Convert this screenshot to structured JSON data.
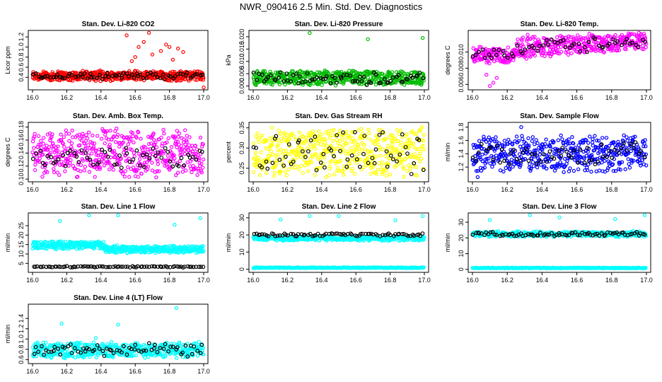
{
  "title": "NWR_090416  2.5 Min. Std. Dev. Diagnostics",
  "chart_data": [
    {
      "type": "scatter",
      "title": "Stan. Dev. Li-820 CO2",
      "ylabel": "Licor ppm",
      "xlim": [
        16.0,
        17.0
      ],
      "ylim": [
        0.18,
        1.3
      ],
      "xticks": [
        "16.0",
        "16.2",
        "16.4",
        "16.6",
        "16.8",
        "17.0"
      ],
      "yticks": [
        "0.4",
        "0.6",
        "0.8",
        "1.0",
        "1.2"
      ],
      "series": [
        {
          "color": "#ff0000",
          "band": [
            0.32,
            0.54
          ],
          "n": 500,
          "outliers": [
            [
              16.55,
              1.23
            ],
            [
              16.62,
              1.0
            ],
            [
              16.65,
              1.1
            ],
            [
              16.68,
              1.28
            ],
            [
              16.75,
              0.92
            ],
            [
              16.78,
              1.05
            ],
            [
              16.8,
              1.0
            ],
            [
              16.85,
              0.97
            ],
            [
              16.88,
              0.9
            ],
            [
              16.58,
              0.72
            ],
            [
              16.6,
              0.8
            ],
            [
              16.7,
              0.85
            ],
            [
              16.82,
              0.75
            ],
            [
              17.0,
              0.2
            ]
          ]
        },
        {
          "color": "#000000",
          "band": [
            0.36,
            0.5
          ],
          "n": 70,
          "outliers": []
        }
      ]
    },
    {
      "type": "scatter",
      "title": "Stan. Dev. Li-820 Pressure",
      "ylabel": "kPa",
      "xlim": [
        16.0,
        17.0
      ],
      "ylim": [
        -0.001,
        0.022
      ],
      "xticks": [
        "16.0",
        "16.2",
        "16.4",
        "16.6",
        "16.8",
        "17.0"
      ],
      "yticks": [
        "0.000",
        "0.005",
        "0.010",
        "0.015",
        "0.020"
      ],
      "series": [
        {
          "color": "#00bb00",
          "band": [
            0.0,
            0.0065
          ],
          "n": 500,
          "outliers": [
            [
              16.33,
              0.0215
            ],
            [
              16.67,
              0.019
            ],
            [
              16.99,
              0.0195
            ]
          ]
        },
        {
          "color": "#000000",
          "band": [
            0.0,
            0.006
          ],
          "n": 70,
          "outliers": []
        }
      ]
    },
    {
      "type": "scatter",
      "title": "Stan. Dev. Li-820 Temp.",
      "ylabel": "degrees C",
      "xlim": [
        16.0,
        17.0
      ],
      "ylim": [
        0.0055,
        0.0125
      ],
      "xticks": [
        "16.0",
        "16.2",
        "16.4",
        "16.6",
        "16.8",
        "17.0"
      ],
      "yticks": [
        "0.006",
        "0.008",
        "0.010"
      ],
      "series": [
        {
          "color": "#ff00ff",
          "band": [
            0.0085,
            0.0125
          ],
          "n": 500,
          "trend": true,
          "outliers": [
            [
              16.1,
              0.0058
            ],
            [
              16.12,
              0.0062
            ],
            [
              16.14,
              0.0068
            ],
            [
              16.08,
              0.0072
            ]
          ]
        },
        {
          "color": "#000000",
          "band": [
            0.009,
            0.0122
          ],
          "n": 60,
          "trend": true,
          "outliers": []
        }
      ]
    },
    {
      "type": "scatter",
      "title": "Stan. Dev. Amb. Box Temp.",
      "ylabel": "degrees C",
      "xlim": [
        16.0,
        17.0
      ],
      "ylim": [
        0.098,
        0.185
      ],
      "xticks": [
        "16.0",
        "16.2",
        "16.4",
        "16.6",
        "16.8",
        "17.0"
      ],
      "yticks": [
        "0.10",
        "0.12",
        "0.14",
        "0.16",
        "0.18"
      ],
      "series": [
        {
          "color": "#ff00ff",
          "band": [
            0.1,
            0.18
          ],
          "n": 500,
          "outliers": []
        },
        {
          "color": "#000000",
          "band": [
            0.115,
            0.15
          ],
          "n": 60,
          "outliers": []
        }
      ]
    },
    {
      "type": "scatter",
      "title": "Stan. Dev. Gas Stream RH",
      "ylabel": "percent",
      "xlim": [
        16.0,
        17.0
      ],
      "ylim": [
        0.22,
        0.36
      ],
      "xticks": [
        "16.0",
        "16.2",
        "16.4",
        "16.6",
        "16.8",
        "17.0"
      ],
      "yticks": [
        "0.25",
        "0.30",
        "0.35"
      ],
      "series": [
        {
          "color": "#ffff00",
          "band": [
            0.225,
            0.355
          ],
          "n": 500,
          "outliers": []
        },
        {
          "color": "#000000",
          "band": [
            0.235,
            0.35
          ],
          "n": 60,
          "outliers": []
        }
      ]
    },
    {
      "type": "scatter",
      "title": "Stan. Dev. Sample Flow",
      "ylabel": "ml/min",
      "xlim": [
        16.0,
        17.0
      ],
      "ylim": [
        1.0,
        1.85
      ],
      "xticks": [
        "16.0",
        "16.2",
        "16.4",
        "16.6",
        "16.8",
        "17.0"
      ],
      "yticks": [
        "1.2",
        "1.4",
        "1.6",
        "1.8"
      ],
      "series": [
        {
          "color": "#0000ff",
          "band": [
            1.1,
            1.7
          ],
          "n": 500,
          "outliers": [
            [
              16.28,
              1.8
            ],
            [
              16.03,
              1.05
            ]
          ]
        },
        {
          "color": "#000000",
          "band": [
            1.2,
            1.6
          ],
          "n": 60,
          "outliers": []
        }
      ]
    },
    {
      "type": "scatter",
      "title": "Stan. Dev. Line 1 Flow",
      "ylabel": "ml/min",
      "xlim": [
        16.0,
        17.0
      ],
      "ylim": [
        1.0,
        31.0
      ],
      "xticks": [
        "16.0",
        "16.2",
        "16.4",
        "16.6",
        "16.8",
        "17.0"
      ],
      "yticks": [
        "5",
        "10",
        "15",
        "20",
        "25"
      ],
      "series": [
        {
          "color": "#00ffff",
          "band": [
            12.5,
            17.0
          ],
          "n": 500,
          "step": true,
          "outliers": [
            [
              16.16,
              27.5
            ],
            [
              16.33,
              30.5
            ],
            [
              16.5,
              30.5
            ],
            [
              16.83,
              25.5
            ],
            [
              16.98,
              29.0
            ]
          ]
        },
        {
          "color": "#000000",
          "band": [
            2.8,
            3.6
          ],
          "n": 80,
          "outliers": []
        }
      ]
    },
    {
      "type": "scatter",
      "title": "Stan. Dev. Line 2 Flow",
      "ylabel": "ml/min",
      "xlim": [
        16.0,
        17.0
      ],
      "ylim": [
        -1.0,
        32.0
      ],
      "xticks": [
        "16.0",
        "16.2",
        "16.4",
        "16.6",
        "16.8",
        "17.0"
      ],
      "yticks": [
        "0",
        "10",
        "20",
        "30"
      ],
      "series": [
        {
          "color": "#00ffff",
          "band": [
            16.5,
            19.5
          ],
          "n": 400,
          "outliers": [
            [
              16.16,
              29.0
            ],
            [
              16.33,
              31.0
            ],
            [
              16.5,
              31.0
            ],
            [
              16.83,
              28.5
            ],
            [
              16.99,
              31.0
            ]
          ]
        },
        {
          "color": "#00ffff",
          "band": [
            0.6,
            1.2
          ],
          "n": 250,
          "outliers": []
        },
        {
          "color": "#000000",
          "band": [
            19.0,
            21.0
          ],
          "n": 80,
          "outliers": []
        }
      ]
    },
    {
      "type": "scatter",
      "title": "Stan. Dev. Line 3 Flow",
      "ylabel": "ml/min",
      "xlim": [
        16.0,
        17.0
      ],
      "ylim": [
        -1.0,
        35.0
      ],
      "xticks": [
        "16.0",
        "16.2",
        "16.4",
        "16.6",
        "16.8",
        "17.0"
      ],
      "yticks": [
        "0",
        "10",
        "20",
        "30"
      ],
      "series": [
        {
          "color": "#00ffff",
          "band": [
            20.5,
            24.5
          ],
          "n": 400,
          "outliers": [
            [
              16.1,
              31.5
            ],
            [
              16.33,
              34.5
            ],
            [
              16.5,
              33.0
            ],
            [
              16.82,
              32.0
            ],
            [
              16.99,
              34.5
            ]
          ]
        },
        {
          "color": "#00ffff",
          "band": [
            0.6,
            1.2
          ],
          "n": 250,
          "outliers": []
        },
        {
          "color": "#000000",
          "band": [
            21.0,
            24.0
          ],
          "n": 80,
          "outliers": []
        }
      ]
    },
    {
      "type": "scatter",
      "title": "Stan. Dev. Line 4 (LT) Flow",
      "ylabel": "ml/min",
      "xlim": [
        16.0,
        17.0
      ],
      "ylim": [
        0.55,
        1.65
      ],
      "xticks": [
        "16.0",
        "16.2",
        "16.4",
        "16.6",
        "16.8",
        "17.0"
      ],
      "yticks": [
        "0.6",
        "0.8",
        "1.0",
        "1.2",
        "1.4"
      ],
      "series": [
        {
          "color": "#00ffff",
          "band": [
            0.62,
            0.95
          ],
          "n": 500,
          "outliers": [
            [
              16.17,
              1.3
            ],
            [
              16.5,
              1.28
            ],
            [
              16.84,
              1.6
            ],
            [
              16.37,
              1.02
            ]
          ]
        },
        {
          "color": "#000000",
          "band": [
            0.65,
            0.92
          ],
          "n": 70,
          "outliers": []
        }
      ]
    }
  ]
}
